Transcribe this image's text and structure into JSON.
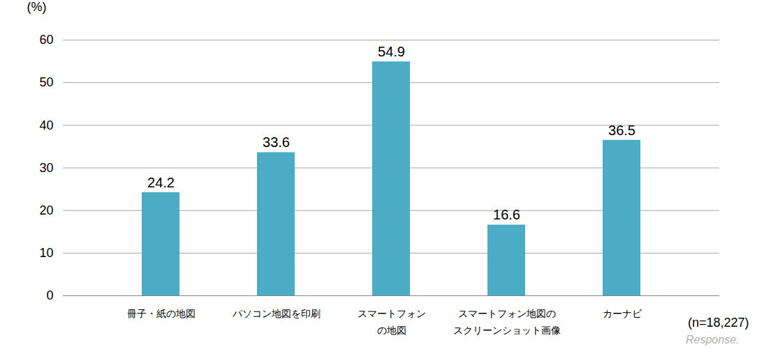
{
  "chart_data": {
    "type": "bar",
    "y_label": "(%)",
    "categories": [
      "冊子・紙の地図",
      "パソコン地図を印刷",
      "スマートフォン\nの地図",
      "スマートフォン地図の\nスクリーンショット画像",
      "カーナビ"
    ],
    "values": [
      24.2,
      33.6,
      54.9,
      16.6,
      36.5
    ],
    "color": "#4bacc6",
    "ylim": [
      0,
      60
    ],
    "yticks": [
      0,
      10,
      20,
      30,
      40,
      50,
      60
    ],
    "grid": true,
    "data_labels": true,
    "annotations": [
      "(n=18,227)",
      "Response."
    ]
  }
}
